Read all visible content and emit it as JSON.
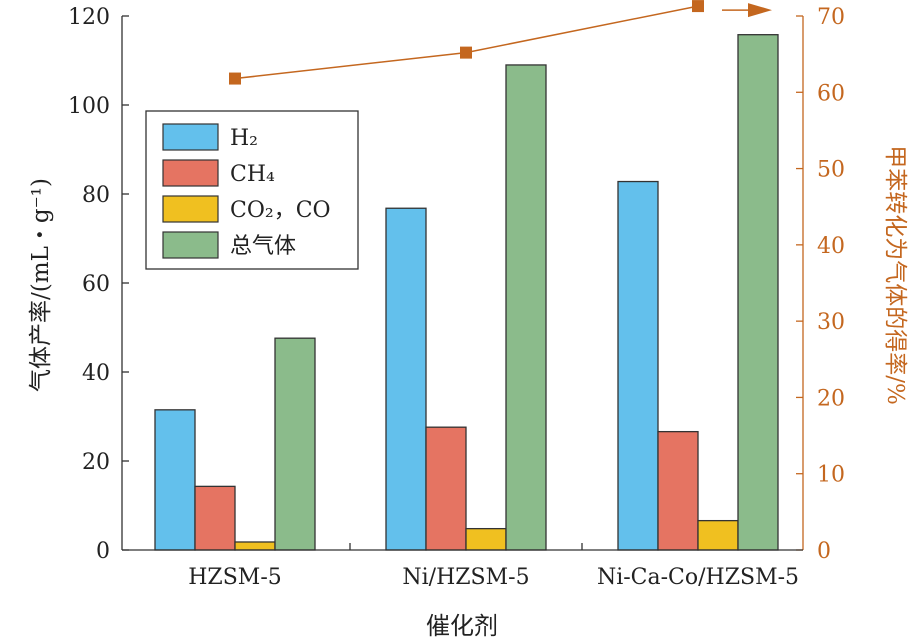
{
  "chart_data": {
    "type": "bar",
    "categories": [
      "HZSM-5",
      "Ni/HZSM-5",
      "Ni-Ca-Co/HZSM-5"
    ],
    "xlabel": "催化剂",
    "ylabel": "气体产率/(mL・g⁻¹)",
    "y2label": "甲苯转化为气体的得率/%",
    "ylim": [
      0,
      120
    ],
    "yticks": [
      0,
      20,
      40,
      60,
      80,
      100,
      120
    ],
    "y2lim": [
      0,
      70
    ],
    "y2ticks": [
      0,
      10,
      20,
      30,
      40,
      50,
      60,
      70
    ],
    "series": [
      {
        "name": "H₂",
        "color": "#63c0ec",
        "values": [
          31.5,
          76.8,
          82.8
        ]
      },
      {
        "name": "CH₄",
        "color": "#e57462",
        "values": [
          14.3,
          27.6,
          26.6
        ]
      },
      {
        "name": "CO₂，CO",
        "color": "#f0c020",
        "values": [
          1.8,
          4.8,
          6.6
        ]
      },
      {
        "name": "总气体",
        "color": "#8bbb8b",
        "values": [
          47.6,
          109.0,
          115.8
        ]
      }
    ],
    "line_series": {
      "axis": "right",
      "color": "#c4671f",
      "marker": "square",
      "values": [
        61.8,
        65.2,
        71.3
      ]
    },
    "legend_position": "upper-left",
    "grid": false
  }
}
